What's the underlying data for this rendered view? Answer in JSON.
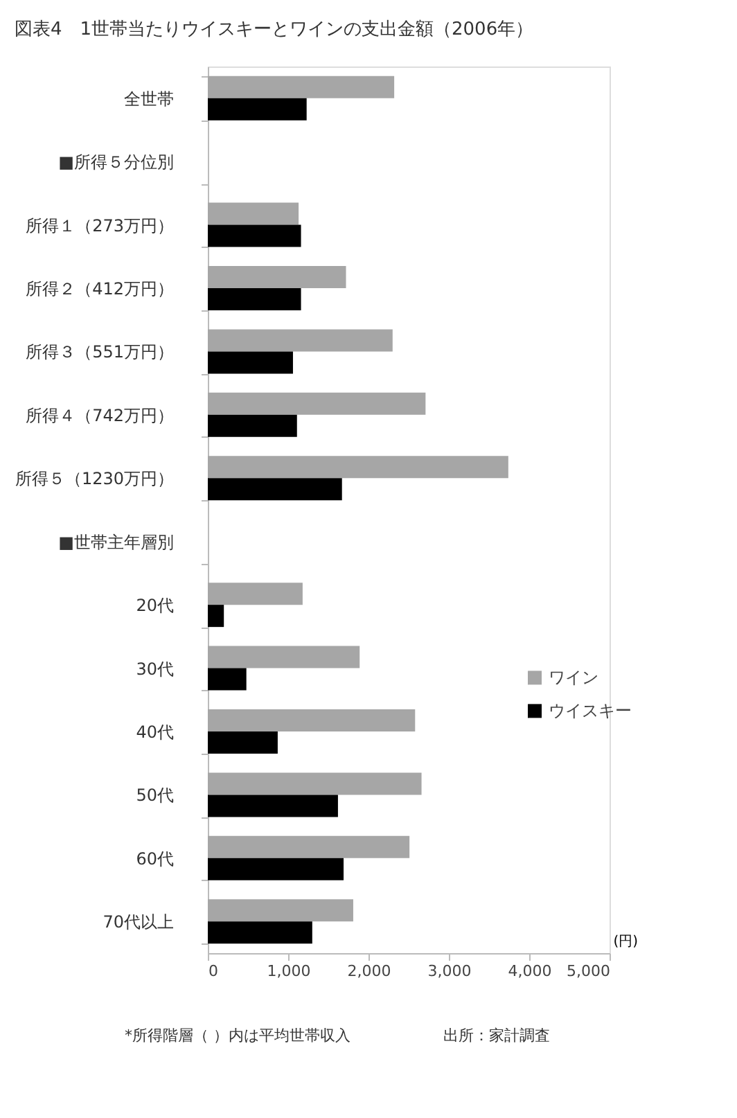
{
  "chart_data": {
    "type": "bar",
    "orientation": "horizontal",
    "title": "図表4　1世帯当たりウイスキーとワインの支出金額（2006年）",
    "xlabel": "(円)",
    "categories": [
      "全世帯",
      "■所得５分位別",
      "所得１（273万円）",
      "所得２（412万円）",
      "所得３（551万円）",
      "所得４（742万円）",
      "所得５（1230万円）",
      "■世帯主年層別",
      "20代",
      "30代",
      "40代",
      "50代",
      "60代",
      "70代以上"
    ],
    "series": [
      {
        "name": "ワイン",
        "color": "#a6a6a6",
        "values": [
          2320,
          null,
          1130,
          1720,
          2300,
          2710,
          3740,
          null,
          1180,
          1890,
          2580,
          2660,
          2510,
          1810
        ]
      },
      {
        "name": "ウイスキー",
        "color": "#000000",
        "values": [
          1230,
          null,
          1160,
          1160,
          1060,
          1110,
          1670,
          null,
          200,
          480,
          870,
          1620,
          1690,
          1300
        ]
      }
    ],
    "xlim": [
      0,
      5000
    ],
    "xticks": [
      {
        "value": 0,
        "label": "0"
      },
      {
        "value": 1000,
        "label": "1,000"
      },
      {
        "value": 2000,
        "label": "2,000"
      },
      {
        "value": 3000,
        "label": "3,000"
      },
      {
        "value": 4000,
        "label": "4,000"
      },
      {
        "value": 5000,
        "label": "5,000"
      }
    ],
    "grid": false,
    "legend": "right",
    "annotations": [
      "*所得階層（ ）内は平均世帯収入",
      "出所：家計調査"
    ]
  }
}
